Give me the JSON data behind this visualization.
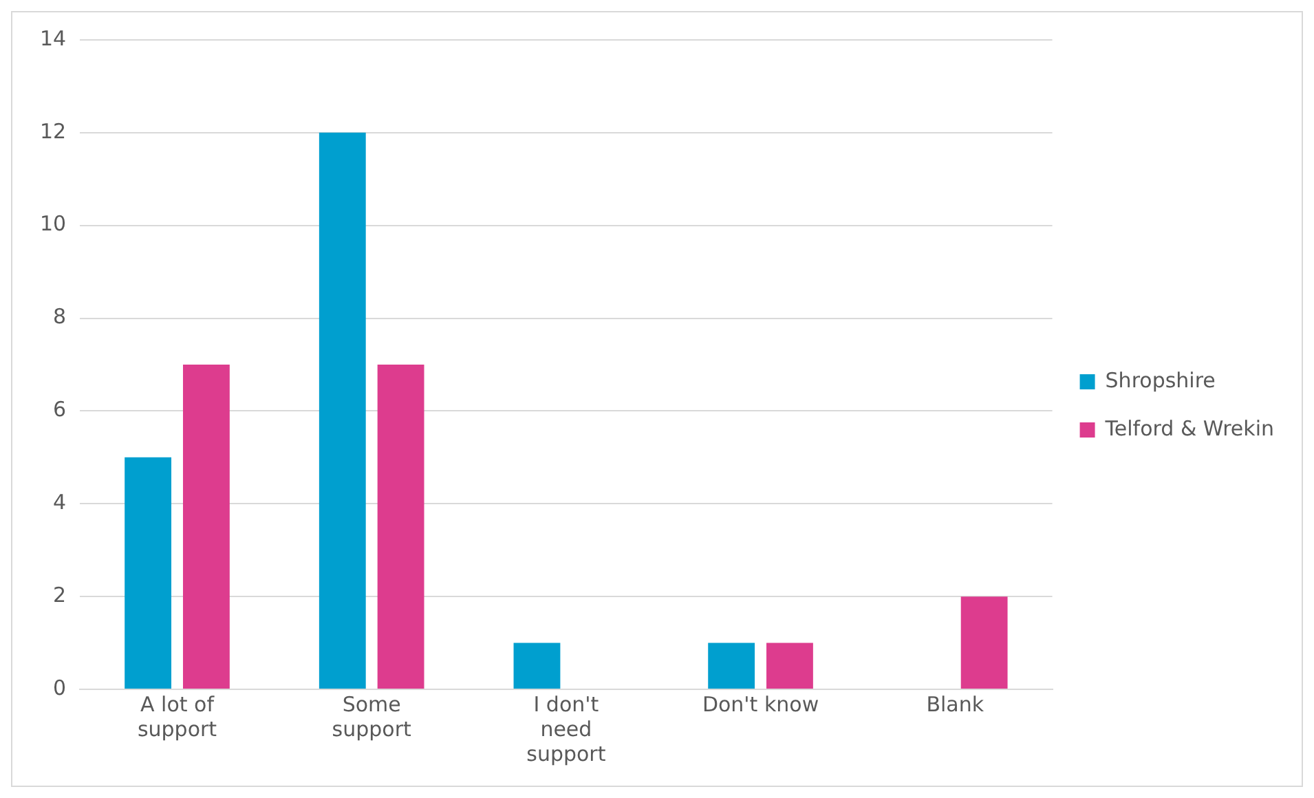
{
  "chart_data": {
    "type": "bar",
    "categories": [
      "A lot of support",
      "Some support",
      "I don't need support",
      "Don't know",
      "Blank"
    ],
    "series": [
      {
        "name": "Shropshire",
        "color": "#009fcf",
        "values": [
          5,
          12,
          1,
          1,
          0
        ]
      },
      {
        "name": "Telford & Wrekin",
        "color": "#dd3c8e",
        "values": [
          7,
          7,
          0,
          1,
          2
        ]
      }
    ],
    "ylim": [
      0,
      14
    ],
    "yticks": [
      0,
      2,
      4,
      6,
      8,
      10,
      12,
      14
    ],
    "grid": "y",
    "legend": "right"
  }
}
